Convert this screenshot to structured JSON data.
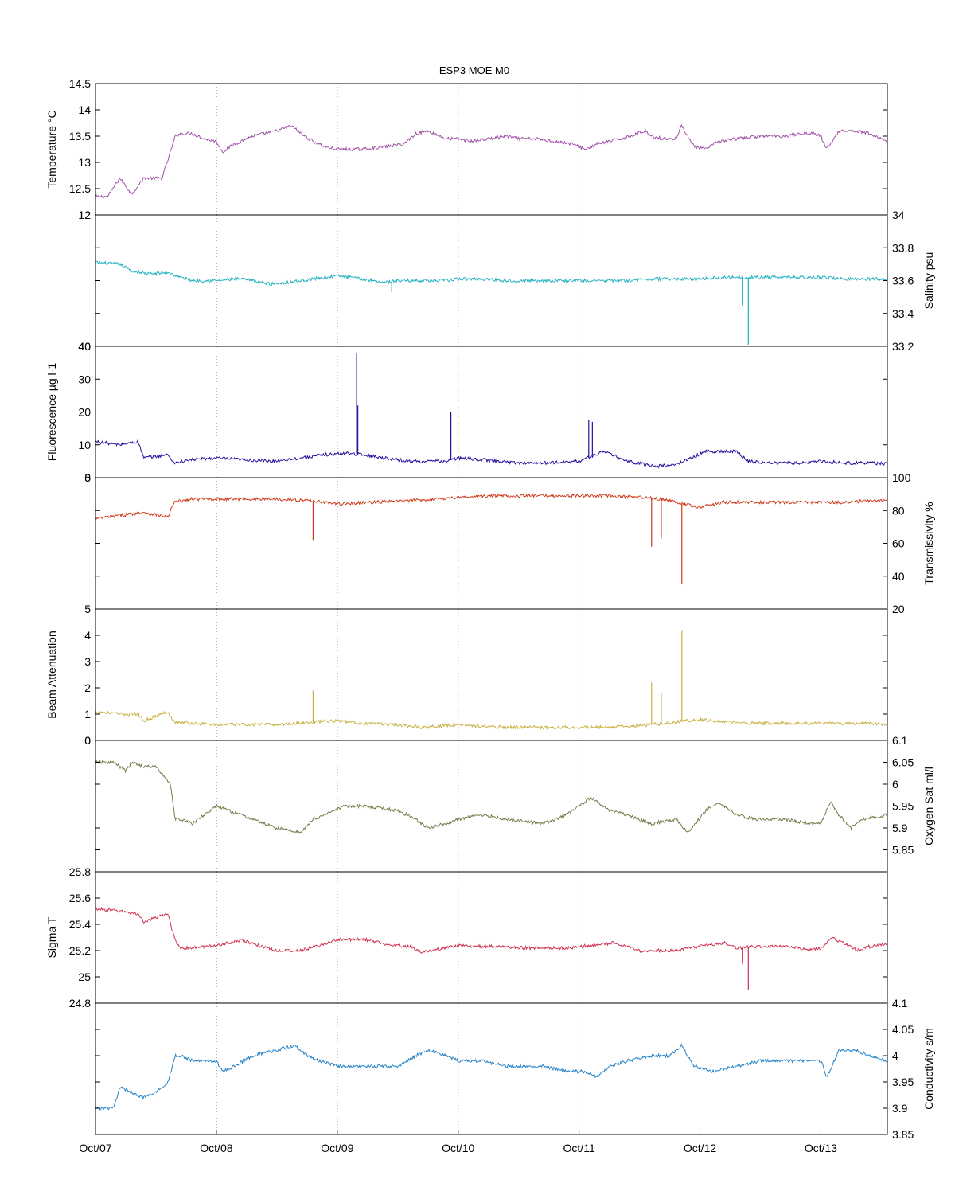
{
  "chart_data": {
    "type": "line",
    "title": "ESP3 MOE   M0",
    "x_ticks": [
      "Oct/07",
      "Oct/08",
      "Oct/09",
      "Oct/10",
      "Oct/11",
      "Oct/12",
      "Oct/13"
    ],
    "x_range_days": [
      0,
      6.55
    ],
    "grid": "vertical dotted at day ticks",
    "panels": [
      {
        "id": "temperature",
        "ylabel": "Temperature °C",
        "axis": "left",
        "color": "#a050a8",
        "ylim": [
          12,
          14.5
        ],
        "ticks": [
          "12",
          "12.5",
          "13",
          "13.5",
          "14",
          "14.5"
        ],
        "x": [
          0,
          0.1,
          0.2,
          0.3,
          0.4,
          0.55,
          0.62,
          0.66,
          0.7,
          0.8,
          0.9,
          1.0,
          1.05,
          1.15,
          1.3,
          1.5,
          1.62,
          1.7,
          1.8,
          1.9,
          2.0,
          2.2,
          2.4,
          2.55,
          2.65,
          2.75,
          2.9,
          3.0,
          3.1,
          3.25,
          3.4,
          3.5,
          3.65,
          3.8,
          3.95,
          4.05,
          4.15,
          4.25,
          4.35,
          4.55,
          4.6,
          4.7,
          4.8,
          4.85,
          4.95,
          5.05,
          5.15,
          5.3,
          5.5,
          5.7,
          5.85,
          5.95,
          6.0,
          6.05,
          6.15,
          6.3,
          6.4,
          6.55
        ],
        "y": [
          12.35,
          12.35,
          12.7,
          12.4,
          12.7,
          12.7,
          13.2,
          13.5,
          13.55,
          13.55,
          13.45,
          13.4,
          13.2,
          13.35,
          13.5,
          13.6,
          13.7,
          13.55,
          13.4,
          13.3,
          13.25,
          13.25,
          13.3,
          13.35,
          13.55,
          13.6,
          13.45,
          13.45,
          13.4,
          13.45,
          13.5,
          13.45,
          13.45,
          13.4,
          13.35,
          13.25,
          13.35,
          13.4,
          13.45,
          13.6,
          13.5,
          13.45,
          13.45,
          13.7,
          13.3,
          13.25,
          13.4,
          13.45,
          13.5,
          13.5,
          13.55,
          13.55,
          13.5,
          13.25,
          13.6,
          13.6,
          13.55,
          13.4
        ]
      },
      {
        "id": "salinity",
        "ylabel": "Salinity psu",
        "axis": "right",
        "color": "#20b0c0",
        "ylim": [
          33.2,
          34
        ],
        "ticks": [
          "33.2",
          "33.4",
          "33.6",
          "33.8",
          "34"
        ],
        "left_ticks": [
          "12",
          "40"
        ],
        "x": [
          0,
          0.2,
          0.3,
          0.45,
          0.6,
          0.7,
          0.8,
          1.0,
          1.2,
          1.45,
          1.6,
          1.8,
          2.0,
          2.2,
          2.4,
          2.5,
          2.7,
          2.9,
          3.0,
          3.2,
          3.4,
          3.6,
          3.8,
          4.0,
          4.2,
          4.4,
          4.6,
          4.8,
          5.0,
          5.2,
          5.4,
          5.6,
          5.8,
          6.0,
          6.2,
          6.4,
          6.55
        ],
        "y": [
          33.71,
          33.7,
          33.66,
          33.64,
          33.65,
          33.62,
          33.6,
          33.6,
          33.61,
          33.58,
          33.59,
          33.61,
          33.63,
          33.61,
          33.59,
          33.6,
          33.6,
          33.6,
          33.61,
          33.61,
          33.6,
          33.6,
          33.6,
          33.6,
          33.6,
          33.6,
          33.61,
          33.61,
          33.61,
          33.62,
          33.62,
          33.62,
          33.62,
          33.62,
          33.61,
          33.61,
          33.61
        ],
        "spikes": [
          {
            "x": 2.45,
            "y": 33.53
          },
          {
            "x": 5.35,
            "y": 33.45
          },
          {
            "x": 5.4,
            "y": 33.21
          }
        ]
      },
      {
        "id": "fluorescence",
        "ylabel": "Fluorescence µg l-1",
        "axis": "left",
        "color": "#2010a0",
        "ylim": [
          0,
          40
        ],
        "ticks": [
          "0",
          "10",
          "20",
          "30",
          "40"
        ],
        "x": [
          0,
          0.2,
          0.35,
          0.4,
          0.6,
          0.65,
          0.8,
          1.0,
          1.2,
          1.45,
          1.7,
          1.9,
          2.1,
          2.3,
          2.6,
          2.9,
          3.0,
          3.2,
          3.5,
          3.75,
          4.0,
          4.2,
          4.4,
          4.55,
          4.65,
          4.8,
          5.05,
          5.3,
          5.4,
          5.6,
          5.8,
          6.0,
          6.2,
          6.4,
          6.55
        ],
        "y": [
          11,
          10,
          11,
          6,
          7,
          4.5,
          5.5,
          6,
          5.5,
          5,
          6,
          7,
          7.5,
          6.5,
          5,
          5,
          6,
          5.5,
          4.5,
          4.5,
          5,
          8,
          5,
          4,
          3.5,
          4,
          8,
          8,
          5,
          4.5,
          4.5,
          5,
          4.5,
          4.5,
          4.2
        ],
        "spikes": [
          {
            "x": 2.16,
            "y": 38
          },
          {
            "x": 2.17,
            "y": 22
          },
          {
            "x": 2.94,
            "y": 20
          },
          {
            "x": 4.08,
            "y": 17.5
          },
          {
            "x": 4.11,
            "y": 17
          }
        ]
      },
      {
        "id": "transmissivity",
        "ylabel": "Transmissivity %",
        "axis": "right",
        "color": "#d03818",
        "ylim": [
          20,
          100
        ],
        "ticks": [
          "20",
          "40",
          "60",
          "80",
          "100"
        ],
        "left_ticks": [
          "5"
        ],
        "x": [
          0,
          0.2,
          0.4,
          0.6,
          0.65,
          0.8,
          1.0,
          1.2,
          1.5,
          1.8,
          2.0,
          2.3,
          2.6,
          3.0,
          3.3,
          3.6,
          3.9,
          4.2,
          4.5,
          4.7,
          4.85,
          5.0,
          5.2,
          5.4,
          5.6,
          5.8,
          6.0,
          6.2,
          6.4,
          6.55
        ],
        "y": [
          75,
          77,
          79,
          76,
          85,
          87,
          87,
          87,
          87,
          86,
          84,
          85,
          86,
          88,
          89,
          89,
          89,
          89,
          88,
          87,
          84,
          82,
          85,
          85,
          85,
          85,
          85,
          85,
          86,
          86
        ],
        "spikes": [
          {
            "x": 1.8,
            "y": 62
          },
          {
            "x": 4.6,
            "y": 58
          },
          {
            "x": 4.68,
            "y": 63
          },
          {
            "x": 4.85,
            "y": 35
          }
        ]
      },
      {
        "id": "beam_attenuation",
        "ylabel": "Beam Attenuation",
        "axis": "left",
        "color": "#c8b040",
        "ylim": [
          0,
          5
        ],
        "ticks": [
          "0",
          "1",
          "2",
          "3",
          "4",
          "5"
        ],
        "x": [
          0,
          0.2,
          0.35,
          0.4,
          0.6,
          0.65,
          0.8,
          1.0,
          1.2,
          1.5,
          1.8,
          2.0,
          2.2,
          2.5,
          2.7,
          3.0,
          3.3,
          3.6,
          3.9,
          4.2,
          4.5,
          4.8,
          5.0,
          5.2,
          5.4,
          5.6,
          5.8,
          6.0,
          6.2,
          6.4,
          6.55
        ],
        "y": [
          1.1,
          1.0,
          1.0,
          0.75,
          1.1,
          0.7,
          0.65,
          0.6,
          0.6,
          0.6,
          0.7,
          0.75,
          0.65,
          0.6,
          0.5,
          0.6,
          0.5,
          0.5,
          0.5,
          0.5,
          0.55,
          0.7,
          0.8,
          0.7,
          0.65,
          0.65,
          0.65,
          0.65,
          0.65,
          0.65,
          0.6
        ],
        "spikes": [
          {
            "x": 1.8,
            "y": 1.9
          },
          {
            "x": 4.6,
            "y": 2.2
          },
          {
            "x": 4.68,
            "y": 1.8
          },
          {
            "x": 4.85,
            "y": 4.2
          }
        ]
      },
      {
        "id": "oxygen_sat",
        "ylabel": "Oxygen Sat ml/l",
        "axis": "right",
        "color": "#787848",
        "ylim": [
          5.8,
          6.1
        ],
        "ticks": [
          "5.85",
          "5.9",
          "5.95",
          "6",
          "6.05",
          "6.1"
        ],
        "left_ticks": [
          "0"
        ],
        "x": [
          0,
          0.15,
          0.25,
          0.3,
          0.4,
          0.5,
          0.62,
          0.66,
          0.7,
          0.8,
          1.0,
          1.2,
          1.5,
          1.7,
          1.8,
          1.9,
          2.05,
          2.2,
          2.5,
          2.65,
          2.75,
          2.9,
          3.0,
          3.2,
          3.4,
          3.7,
          3.9,
          4.0,
          4.1,
          4.25,
          4.4,
          4.6,
          4.8,
          4.9,
          5.05,
          5.15,
          5.3,
          5.45,
          5.7,
          5.9,
          6.0,
          6.08,
          6.15,
          6.25,
          6.35,
          6.55
        ],
        "y": [
          6.05,
          6.05,
          6.03,
          6.05,
          6.04,
          6.04,
          6.0,
          5.92,
          5.92,
          5.91,
          5.95,
          5.93,
          5.9,
          5.89,
          5.92,
          5.93,
          5.95,
          5.95,
          5.94,
          5.92,
          5.9,
          5.91,
          5.92,
          5.93,
          5.92,
          5.91,
          5.93,
          5.95,
          5.97,
          5.94,
          5.93,
          5.91,
          5.92,
          5.89,
          5.94,
          5.96,
          5.93,
          5.92,
          5.92,
          5.91,
          5.91,
          5.96,
          5.93,
          5.9,
          5.92,
          5.93
        ]
      },
      {
        "id": "sigma_t",
        "ylabel": "Sigma T",
        "axis": "left",
        "color": "#d03050",
        "ylim": [
          24.8,
          25.8
        ],
        "ticks": [
          "24.8",
          "25",
          "25.2",
          "25.4",
          "25.6",
          "25.8"
        ],
        "x": [
          0,
          0.2,
          0.35,
          0.4,
          0.6,
          0.65,
          0.7,
          0.8,
          1.0,
          1.2,
          1.5,
          1.7,
          1.85,
          2.0,
          2.2,
          2.4,
          2.6,
          2.7,
          2.9,
          3.0,
          3.3,
          3.6,
          3.9,
          4.1,
          4.3,
          4.5,
          4.6,
          4.8,
          4.9,
          5.05,
          5.2,
          5.3,
          5.45,
          5.7,
          5.9,
          6.0,
          6.1,
          6.2,
          6.3,
          6.4,
          6.55
        ],
        "y": [
          25.52,
          25.5,
          25.48,
          25.42,
          25.48,
          25.3,
          25.22,
          25.22,
          25.24,
          25.28,
          25.2,
          25.2,
          25.24,
          25.28,
          25.29,
          25.25,
          25.23,
          25.19,
          25.22,
          25.24,
          25.23,
          25.22,
          25.22,
          25.24,
          25.26,
          25.2,
          25.2,
          25.2,
          25.22,
          25.24,
          25.26,
          25.22,
          25.23,
          25.23,
          25.21,
          25.22,
          25.3,
          25.25,
          25.2,
          25.23,
          25.25
        ],
        "spikes": [
          {
            "x": 5.35,
            "y": 25.1
          },
          {
            "x": 5.4,
            "y": 24.9
          }
        ]
      },
      {
        "id": "conductivity",
        "ylabel": "Conductivity s/m",
        "axis": "right",
        "color": "#2080c8",
        "ylim": [
          3.85,
          4.1
        ],
        "ticks": [
          "3.85",
          "3.9",
          "3.95",
          "4",
          "4.05",
          "4.1"
        ],
        "x": [
          0,
          0.15,
          0.2,
          0.3,
          0.4,
          0.5,
          0.6,
          0.66,
          0.7,
          0.8,
          1.0,
          1.05,
          1.15,
          1.3,
          1.5,
          1.65,
          1.75,
          1.85,
          2.0,
          2.2,
          2.5,
          2.65,
          2.75,
          2.9,
          3.0,
          3.2,
          3.4,
          3.7,
          3.9,
          4.05,
          4.15,
          4.25,
          4.4,
          4.6,
          4.75,
          4.85,
          4.95,
          5.1,
          5.3,
          5.5,
          5.7,
          5.9,
          6.0,
          6.05,
          6.15,
          6.3,
          6.4,
          6.55
        ],
        "y": [
          3.9,
          3.9,
          3.94,
          3.93,
          3.92,
          3.93,
          3.95,
          4.0,
          4.0,
          3.99,
          3.99,
          3.97,
          3.98,
          4.0,
          4.01,
          4.02,
          4.0,
          3.99,
          3.98,
          3.98,
          3.98,
          4.0,
          4.01,
          4.0,
          3.99,
          3.99,
          3.98,
          3.98,
          3.97,
          3.97,
          3.96,
          3.98,
          3.99,
          4.0,
          4.0,
          4.02,
          3.98,
          3.97,
          3.98,
          3.99,
          3.99,
          3.99,
          3.99,
          3.96,
          4.01,
          4.01,
          4.0,
          3.99
        ]
      }
    ]
  }
}
